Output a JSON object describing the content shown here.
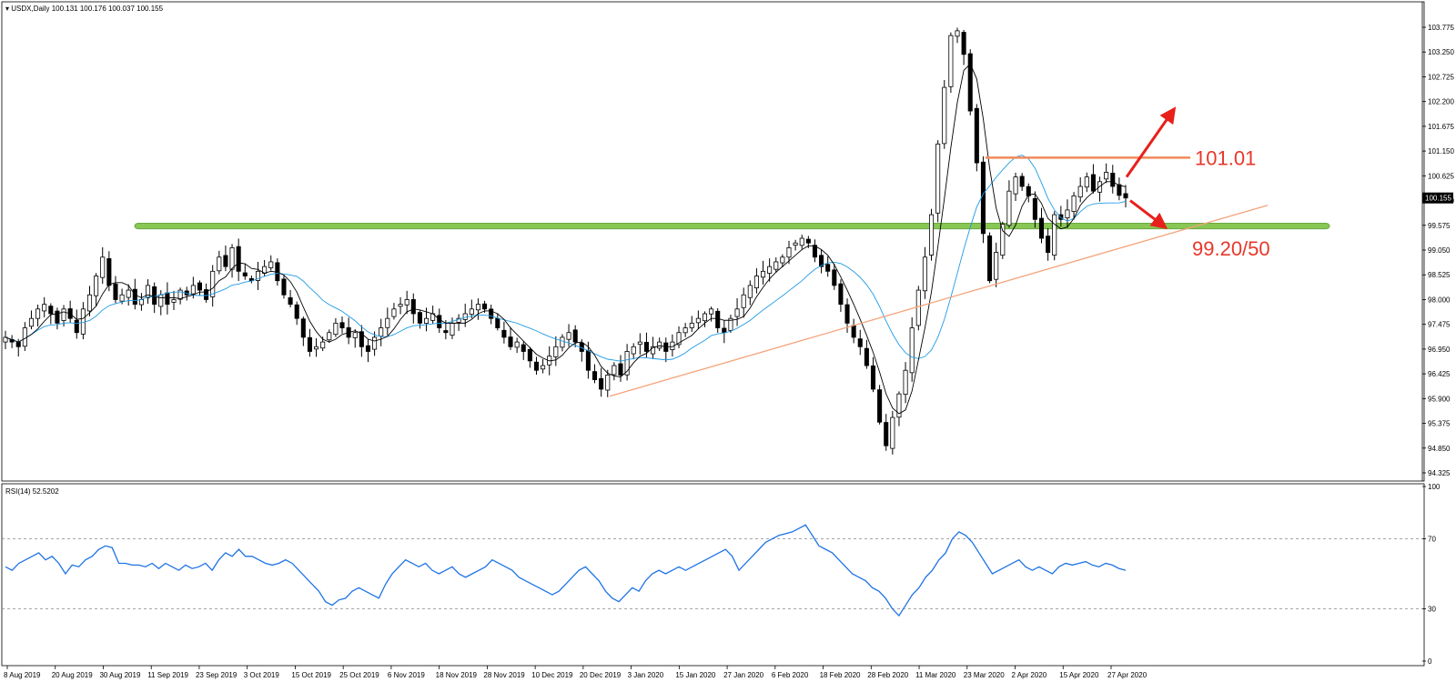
{
  "header": {
    "symbol_line": "USDX,Daily  100.131 100.176 100.037 100.155",
    "rsi_line": "RSI(14) 52.5202"
  },
  "colors": {
    "candle_up": "#ffffff",
    "candle_down": "#000000",
    "ma_fast": "#000000",
    "ma_slow": "#1e9be6",
    "rsi": "#1e73e6",
    "support_zone": "#7cc242",
    "trendline": "#f4a37a",
    "resistance": "#f08a5a",
    "arrow": "#e8201c",
    "annotation_text": "#e8372a"
  },
  "chart_data": [
    {
      "type": "candlestick",
      "title": "USDX,Daily",
      "ohlc_header": [
        100.131,
        100.176,
        100.037,
        100.155
      ],
      "last_price_label": "100.155",
      "y_ticks": [
        "103.775",
        "103.250",
        "102.725",
        "102.200",
        "101.675",
        "101.150",
        "100.625",
        "100.100",
        "99.575",
        "99.050",
        "98.525",
        "98.000",
        "97.475",
        "96.950",
        "96.425",
        "95.900",
        "95.375",
        "94.850",
        "94.325"
      ],
      "ylim": [
        94.325,
        104.0
      ],
      "x_tick_labels": [
        "8 Aug 2019",
        "20 Aug 2019",
        "30 Aug 2019",
        "11 Sep 2019",
        "23 Sep 2019",
        "3 Oct 2019",
        "15 Oct 2019",
        "25 Oct 2019",
        "6 Nov 2019",
        "18 Nov 2019",
        "28 Nov 2019",
        "10 Dec 2019",
        "20 Dec 2019",
        "3 Jan 2020",
        "15 Jan 2020",
        "27 Jan 2020",
        "6 Feb 2020",
        "18 Feb 2020",
        "28 Feb 2020",
        "11 Mar 2020",
        "23 Mar 2020",
        "2 Apr 2020",
        "15 Apr 2020",
        "27 Apr 2020"
      ],
      "close_series": [
        97.2,
        97.1,
        97.0,
        97.4,
        97.6,
        97.8,
        97.9,
        97.7,
        97.5,
        97.8,
        97.6,
        97.3,
        97.8,
        98.1,
        98.5,
        98.9,
        98.3,
        98.0,
        98.1,
        98.2,
        97.9,
        98.0,
        98.3,
        97.9,
        98.1,
        97.9,
        98.0,
        98.2,
        98.1,
        98.3,
        98.2,
        98.0,
        98.6,
        98.9,
        98.7,
        99.1,
        98.6,
        98.5,
        98.4,
        98.6,
        98.7,
        98.8,
        98.4,
        98.1,
        97.9,
        97.6,
        97.2,
        96.9,
        97.0,
        97.1,
        97.3,
        97.5,
        97.4,
        97.2,
        97.3,
        97.0,
        96.9,
        97.2,
        97.4,
        97.6,
        97.8,
        97.9,
        98.0,
        97.7,
        97.5,
        97.6,
        97.7,
        97.4,
        97.3,
        97.5,
        97.6,
        97.7,
        97.8,
        97.9,
        97.8,
        97.6,
        97.4,
        97.2,
        97.0,
        97.1,
        96.9,
        96.7,
        96.5,
        96.6,
        96.8,
        97.0,
        97.2,
        97.3,
        97.1,
        96.9,
        96.5,
        96.3,
        96.1,
        96.4,
        96.6,
        96.4,
        96.9,
        97.0,
        97.1,
        96.9,
        97.0,
        97.1,
        96.9,
        97.1,
        97.3,
        97.4,
        97.5,
        97.6,
        97.7,
        97.8,
        97.4,
        97.3,
        97.6,
        97.8,
        98.1,
        98.3,
        98.5,
        98.6,
        98.7,
        98.8,
        98.9,
        99.1,
        99.2,
        99.3,
        99.2,
        98.9,
        98.7,
        98.6,
        98.3,
        97.9,
        97.5,
        97.2,
        97.0,
        96.6,
        96.1,
        95.4,
        94.9,
        95.5,
        96.0,
        96.5,
        97.4,
        98.2,
        98.9,
        99.8,
        101.3,
        102.5,
        103.6,
        103.7,
        103.2,
        102.0,
        100.9,
        99.4,
        98.4,
        99.0,
        99.6,
        100.3,
        100.6,
        100.4,
        100.2,
        99.7,
        99.3,
        99.0,
        99.8,
        99.7,
        99.9,
        100.2,
        100.4,
        100.6,
        100.3,
        100.5,
        100.7,
        100.4,
        100.21,
        100.155
      ],
      "ma_fast_period": "short SMA (black)",
      "ma_slow_period": "long SMA (blue)"
    },
    {
      "type": "line",
      "title": "RSI(14)",
      "value_label": "52.5202",
      "y_ticks": [
        "100",
        "70",
        "30",
        "0"
      ],
      "ylim": [
        0,
        100
      ],
      "levels": [
        70,
        30
      ],
      "values": [
        54,
        52,
        56,
        58,
        60,
        62,
        58,
        60,
        56,
        50,
        55,
        54,
        58,
        60,
        64,
        66,
        65,
        56,
        56,
        55,
        55,
        54,
        56,
        53,
        56,
        54,
        52,
        55,
        53,
        54,
        56,
        52,
        58,
        62,
        60,
        64,
        60,
        60,
        58,
        56,
        55,
        56,
        58,
        56,
        52,
        48,
        44,
        40,
        34,
        32,
        35,
        36,
        40,
        42,
        40,
        38,
        36,
        44,
        50,
        54,
        58,
        56,
        54,
        56,
        52,
        50,
        52,
        54,
        50,
        48,
        50,
        52,
        54,
        58,
        56,
        54,
        52,
        48,
        46,
        44,
        42,
        40,
        38,
        40,
        44,
        48,
        52,
        54,
        50,
        46,
        40,
        36,
        34,
        38,
        42,
        40,
        46,
        50,
        52,
        50,
        52,
        54,
        52,
        54,
        56,
        58,
        60,
        62,
        64,
        60,
        52,
        56,
        60,
        64,
        68,
        70,
        72,
        73,
        74,
        76,
        78,
        72,
        66,
        64,
        62,
        58,
        54,
        50,
        48,
        46,
        42,
        40,
        36,
        30,
        26,
        32,
        38,
        42,
        48,
        52,
        58,
        62,
        70,
        74,
        72,
        68,
        62,
        56,
        50,
        52,
        54,
        56,
        58,
        54,
        52,
        54,
        52,
        50,
        54,
        56,
        55,
        56,
        57,
        55,
        54,
        56,
        55,
        53,
        52
      ]
    }
  ],
  "annotations": {
    "resistance_label": "101.01",
    "support_label": "99.20/50"
  }
}
